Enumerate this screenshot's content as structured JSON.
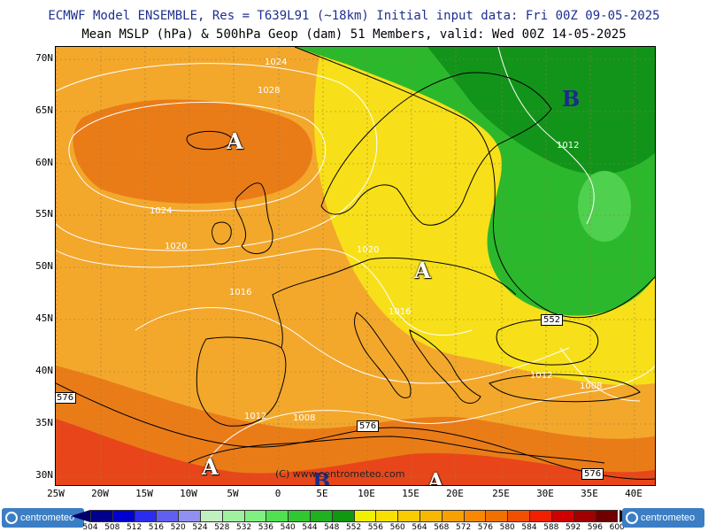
{
  "header": {
    "title1": "ECMWF Model ENSEMBLE, Res = T639L91 (~18km)  Initial input data: Fri 00Z 09-05-2025",
    "title2": "Mean MSLP (hPa) & 500hPa Geop (dam)  51 Members, valid: Wed 00Z 14-05-2025"
  },
  "axes": {
    "lat_labels": [
      "70N",
      "65N",
      "60N",
      "55N",
      "50N",
      "45N",
      "40N",
      "35N",
      "30N"
    ],
    "lon_labels": [
      "25W",
      "20W",
      "15W",
      "10W",
      "5W",
      "0",
      "5E",
      "10E",
      "15E",
      "20E",
      "25E",
      "30E",
      "35E",
      "40E"
    ]
  },
  "pressure_centers": [
    {
      "label": "A",
      "type": "high"
    },
    {
      "label": "A",
      "type": "high"
    },
    {
      "label": "A",
      "type": "high"
    },
    {
      "label": "A",
      "type": "high"
    },
    {
      "label": "B",
      "type": "low"
    },
    {
      "label": "B",
      "type": "low"
    }
  ],
  "isobar_labels": [
    "1024",
    "1028",
    "1024",
    "1020",
    "1016",
    "1020",
    "1016",
    "1012",
    "1012",
    "1008",
    "1012",
    "1008"
  ],
  "geopotential_labels": [
    "552",
    "576",
    "576",
    "576"
  ],
  "copyright": "(C) www.centrometeo.com",
  "legend": {
    "values": [
      "504",
      "508",
      "512",
      "516",
      "520",
      "524",
      "528",
      "532",
      "536",
      "540",
      "544",
      "548",
      "552",
      "556",
      "560",
      "564",
      "568",
      "572",
      "576",
      "580",
      "584",
      "588",
      "592",
      "596",
      "600"
    ],
    "colors": [
      "#00008c",
      "#0000d0",
      "#2c2cf0",
      "#6060f0",
      "#9090f0",
      "#c0f0c0",
      "#a0f0a0",
      "#80f080",
      "#50e050",
      "#30c830",
      "#20b020",
      "#109810",
      "#f0f000",
      "#f8e000",
      "#f8cc00",
      "#f8b800",
      "#f8a000",
      "#f88800",
      "#f07000",
      "#f05000",
      "#f02000",
      "#d00000",
      "#a00000",
      "#700000",
      "#400000"
    ],
    "logo_text": "centrometeo"
  },
  "map": {
    "field_colors": {
      "dark_green": "#12941a",
      "green": "#2cb82c",
      "light_green": "#4fd04f",
      "yellow": "#f7e01a",
      "orange": "#f3a82c",
      "dark_orange": "#ea7c18",
      "red": "#e8461a"
    }
  }
}
